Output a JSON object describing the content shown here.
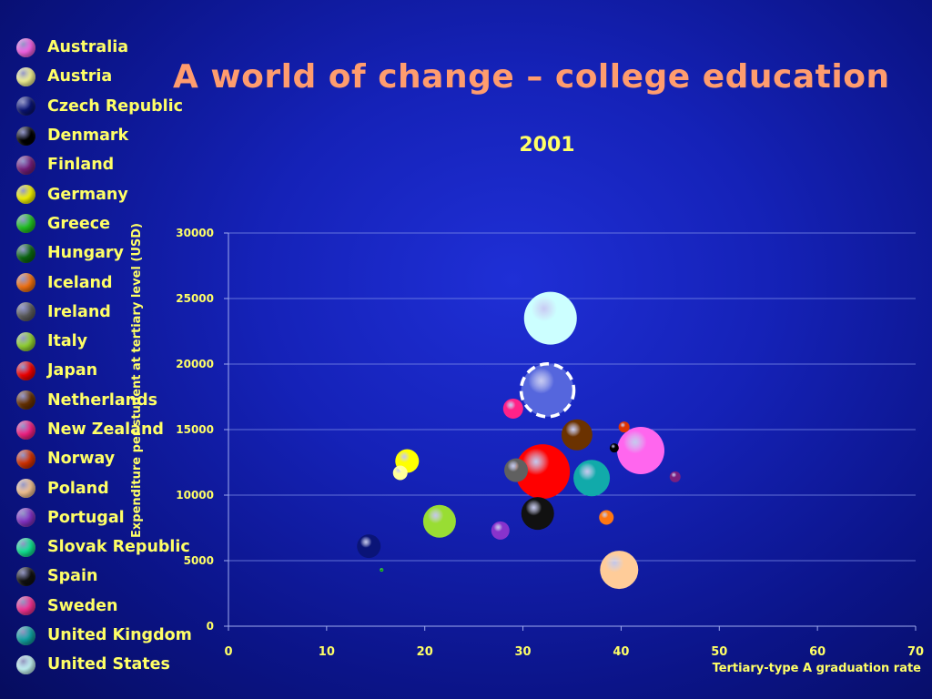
{
  "title": "A world of change – college education",
  "chart_data": {
    "type": "scatter",
    "subtitle": "2001",
    "xlabel": "Tertiary-type A graduation rate",
    "ylabel": "Expenditure per student at tertiary level (USD)",
    "xlim": [
      0,
      70
    ],
    "ylim": [
      0,
      30000
    ],
    "x_ticks": [
      "0",
      "10",
      "20",
      "30",
      "40",
      "50",
      "60",
      "70"
    ],
    "y_ticks": [
      "0",
      "5000",
      "10000",
      "15000",
      "20000",
      "25000",
      "30000"
    ],
    "grid": "horizontal",
    "legend_position": "left",
    "series": [
      {
        "name": "Australia",
        "color": "#ff66ee",
        "x": 42,
        "y": 13400,
        "size": 26
      },
      {
        "name": "Austria",
        "color": "#ffff99",
        "x": 17.5,
        "y": 11700,
        "size": 8
      },
      {
        "name": "Czech Republic",
        "color": "#0a1477",
        "x": 14.3,
        "y": 6100,
        "size": 13
      },
      {
        "name": "Denmark",
        "color": "#000000",
        "x": 39.3,
        "y": 13600,
        "size": 5
      },
      {
        "name": "Finland",
        "color": "#7a1f7f",
        "x": 45.5,
        "y": 11400,
        "size": 6
      },
      {
        "name": "Germany",
        "color": "#ffff00",
        "x": 18.2,
        "y": 12600,
        "size": 13
      },
      {
        "name": "Greece",
        "color": "#22cc22",
        "x": 15.6,
        "y": 4300,
        "size": 2
      },
      {
        "name": "Hungary",
        "color": "#0b6b10",
        "x": 15.6,
        "y": 4300,
        "size": 1
      },
      {
        "name": "Iceland",
        "color": "#ff7711",
        "x": 38.5,
        "y": 8300,
        "size": 8
      },
      {
        "name": "Ireland",
        "color": "#606060",
        "x": 29.3,
        "y": 11900,
        "size": 13
      },
      {
        "name": "Italy",
        "color": "#99dd33",
        "x": 21.5,
        "y": 8000,
        "size": 18
      },
      {
        "name": "Japan",
        "color": "#ff0000",
        "x": 32,
        "y": 11800,
        "size": 30
      },
      {
        "name": "Netherlands",
        "color": "#6b3200",
        "x": 35.5,
        "y": 14600,
        "size": 17
      },
      {
        "name": "New Zealand",
        "color": "#ff2288",
        "x": 29,
        "y": 16600,
        "size": 11
      },
      {
        "name": "Norway",
        "color": "#dd3300",
        "x": 40.3,
        "y": 15200,
        "size": 6
      },
      {
        "name": "Poland",
        "color": "#ffcc99",
        "x": 39.8,
        "y": 4300,
        "size": 21
      },
      {
        "name": "Portugal",
        "color": "#8833cc",
        "x": 27.7,
        "y": 7300,
        "size": 10
      },
      {
        "name": "Slovak Republic",
        "color": "#11ee99",
        "x": 0,
        "y": 0,
        "size": 0
      },
      {
        "name": "Spain",
        "color": "#111111",
        "x": 31.5,
        "y": 8600,
        "size": 18
      },
      {
        "name": "Sweden",
        "color": "#ff3399",
        "x": 0,
        "y": 0,
        "size": 0
      },
      {
        "name": "United Kingdom",
        "color": "#11aaaa",
        "x": 37,
        "y": 11300,
        "size": 20
      },
      {
        "name": "United States",
        "color": "#ccffff",
        "x": 32.8,
        "y": 23500,
        "size": 29
      }
    ],
    "highlight": {
      "x": 32.5,
      "y": 18000,
      "size": 29,
      "color": "#5566dd"
    }
  }
}
